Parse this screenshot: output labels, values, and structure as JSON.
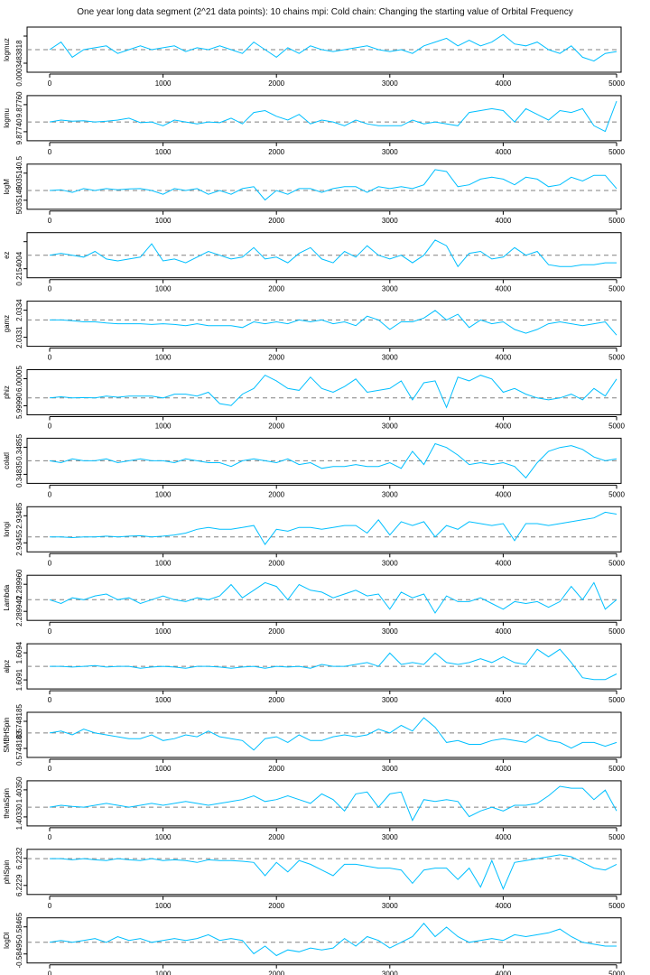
{
  "chart_data": {
    "type": "line",
    "title": "One year long data segment (2^21 data points): 10 chains mpi: Cold chain: Changing the starting value of Orbital Frequency",
    "x_ticks": [
      "0",
      "1000",
      "2000",
      "3000",
      "4000",
      "5000"
    ],
    "x_tick_values": [
      0,
      1000,
      2000,
      3000,
      4000,
      5000
    ],
    "xlim": [
      0,
      5000
    ],
    "x_step": 100,
    "series_color": "#00bfff",
    "reference_line_color": "#808080",
    "note": "y values are relative to each panel's range (0 = bottom, 1 = top); dashed line marks the reference value",
    "panels": [
      {
        "name": "logmuz",
        "yticks": [
          "0.0003483818",
          ""
        ],
        "ref": 0.5,
        "values": [
          0.5,
          0.7,
          0.3,
          0.5,
          0.55,
          0.6,
          0.4,
          0.5,
          0.6,
          0.5,
          0.55,
          0.6,
          0.45,
          0.55,
          0.5,
          0.6,
          0.5,
          0.4,
          0.7,
          0.5,
          0.3,
          0.55,
          0.4,
          0.6,
          0.5,
          0.45,
          0.5,
          0.55,
          0.6,
          0.5,
          0.45,
          0.5,
          0.4,
          0.6,
          0.7,
          0.8,
          0.6,
          0.75,
          0.6,
          0.7,
          0.9,
          0.65,
          0.6,
          0.7,
          0.5,
          0.4,
          0.6,
          0.3,
          0.2,
          0.4,
          0.45
        ]
      },
      {
        "name": "logmu",
        "yticks": [
          "9.87740",
          "9.87760"
        ],
        "ref": 0.4,
        "values": [
          0.4,
          0.45,
          0.42,
          0.43,
          0.4,
          0.42,
          0.45,
          0.5,
          0.38,
          0.4,
          0.3,
          0.45,
          0.4,
          0.35,
          0.4,
          0.38,
          0.5,
          0.35,
          0.65,
          0.7,
          0.55,
          0.45,
          0.6,
          0.35,
          0.45,
          0.4,
          0.3,
          0.45,
          0.35,
          0.3,
          0.3,
          0.3,
          0.45,
          0.35,
          0.4,
          0.35,
          0.3,
          0.65,
          0.7,
          0.75,
          0.7,
          0.4,
          0.75,
          0.6,
          0.45,
          0.7,
          0.65,
          0.75,
          0.3,
          0.15,
          0.95
        ]
      },
      {
        "name": "logM",
        "yticks": [
          "5035140",
          "5035140.5"
        ],
        "ref": 0.4,
        "values": [
          0.4,
          0.42,
          0.35,
          0.45,
          0.4,
          0.45,
          0.42,
          0.44,
          0.45,
          0.4,
          0.3,
          0.45,
          0.4,
          0.45,
          0.3,
          0.4,
          0.3,
          0.45,
          0.5,
          0.15,
          0.4,
          0.3,
          0.45,
          0.45,
          0.35,
          0.45,
          0.5,
          0.5,
          0.35,
          0.5,
          0.45,
          0.5,
          0.45,
          0.55,
          0.95,
          0.9,
          0.5,
          0.55,
          0.7,
          0.75,
          0.7,
          0.55,
          0.75,
          0.7,
          0.5,
          0.55,
          0.75,
          0.65,
          0.8,
          0.8,
          0.45
        ]
      },
      {
        "name": "ez",
        "yticks": [
          "0.2154004",
          ""
        ],
        "ref": 0.5,
        "values": [
          0.5,
          0.55,
          0.5,
          0.45,
          0.6,
          0.4,
          0.35,
          0.4,
          0.45,
          0.8,
          0.35,
          0.4,
          0.3,
          0.45,
          0.6,
          0.5,
          0.4,
          0.45,
          0.7,
          0.4,
          0.45,
          0.3,
          0.55,
          0.7,
          0.4,
          0.3,
          0.6,
          0.45,
          0.75,
          0.5,
          0.4,
          0.5,
          0.3,
          0.5,
          0.9,
          0.75,
          0.2,
          0.55,
          0.6,
          0.4,
          0.45,
          0.7,
          0.5,
          0.6,
          0.25,
          0.2,
          0.2,
          0.25,
          0.25,
          0.3,
          0.3
        ]
      },
      {
        "name": "gamz",
        "yticks": [
          "2.0331",
          "2.0334"
        ],
        "ref": 0.6,
        "values": [
          0.6,
          0.6,
          0.58,
          0.55,
          0.55,
          0.52,
          0.5,
          0.5,
          0.5,
          0.48,
          0.5,
          0.48,
          0.45,
          0.5,
          0.45,
          0.45,
          0.45,
          0.4,
          0.55,
          0.5,
          0.55,
          0.5,
          0.6,
          0.55,
          0.6,
          0.5,
          0.55,
          0.45,
          0.7,
          0.6,
          0.35,
          0.55,
          0.55,
          0.65,
          0.85,
          0.6,
          0.75,
          0.4,
          0.6,
          0.5,
          0.55,
          0.35,
          0.25,
          0.35,
          0.5,
          0.55,
          0.5,
          0.45,
          0.5,
          0.55,
          0.2
        ]
      },
      {
        "name": "phiz",
        "yticks": [
          "5.99990",
          "6.00005"
        ],
        "ref": 0.35,
        "values": [
          0.35,
          0.38,
          0.35,
          0.36,
          0.35,
          0.4,
          0.37,
          0.4,
          0.4,
          0.4,
          0.35,
          0.45,
          0.45,
          0.4,
          0.5,
          0.2,
          0.15,
          0.45,
          0.6,
          0.95,
          0.8,
          0.6,
          0.55,
          0.9,
          0.6,
          0.5,
          0.65,
          0.85,
          0.5,
          0.55,
          0.6,
          0.8,
          0.3,
          0.75,
          0.8,
          0.1,
          0.9,
          0.8,
          0.95,
          0.85,
          0.5,
          0.6,
          0.45,
          0.35,
          0.3,
          0.35,
          0.45,
          0.3,
          0.6,
          0.4,
          0.85
        ]
      },
      {
        "name": "colatl",
        "yticks": [
          "0.34835",
          "0.34855"
        ],
        "ref": 0.5,
        "values": [
          0.5,
          0.45,
          0.55,
          0.5,
          0.5,
          0.55,
          0.45,
          0.5,
          0.55,
          0.5,
          0.5,
          0.45,
          0.55,
          0.5,
          0.45,
          0.45,
          0.35,
          0.5,
          0.55,
          0.5,
          0.45,
          0.55,
          0.4,
          0.45,
          0.3,
          0.35,
          0.35,
          0.4,
          0.35,
          0.35,
          0.45,
          0.3,
          0.75,
          0.4,
          0.95,
          0.85,
          0.65,
          0.4,
          0.45,
          0.4,
          0.45,
          0.35,
          0.05,
          0.45,
          0.75,
          0.85,
          0.9,
          0.8,
          0.6,
          0.5,
          0.55
        ]
      },
      {
        "name": "longi",
        "yticks": [
          "2.93455",
          "2.93485"
        ],
        "ref": 0.3,
        "values": [
          0.3,
          0.3,
          0.28,
          0.3,
          0.3,
          0.32,
          0.3,
          0.32,
          0.33,
          0.3,
          0.32,
          0.35,
          0.4,
          0.5,
          0.55,
          0.5,
          0.5,
          0.55,
          0.6,
          0.1,
          0.5,
          0.45,
          0.55,
          0.55,
          0.5,
          0.55,
          0.6,
          0.6,
          0.4,
          0.75,
          0.35,
          0.7,
          0.6,
          0.7,
          0.3,
          0.6,
          0.5,
          0.7,
          0.65,
          0.6,
          0.65,
          0.2,
          0.65,
          0.65,
          0.6,
          0.65,
          0.7,
          0.75,
          0.8,
          0.95,
          0.9
        ]
      },
      {
        "name": "Lambda",
        "yticks": [
          "2.289940",
          "2.289960"
        ],
        "ref": 0.45,
        "values": [
          0.45,
          0.35,
          0.5,
          0.45,
          0.55,
          0.6,
          0.45,
          0.5,
          0.35,
          0.45,
          0.55,
          0.45,
          0.4,
          0.5,
          0.45,
          0.55,
          0.85,
          0.5,
          0.7,
          0.9,
          0.8,
          0.45,
          0.85,
          0.7,
          0.65,
          0.5,
          0.6,
          0.7,
          0.55,
          0.6,
          0.2,
          0.65,
          0.5,
          0.6,
          0.1,
          0.55,
          0.4,
          0.4,
          0.5,
          0.35,
          0.2,
          0.4,
          0.35,
          0.4,
          0.25,
          0.4,
          0.8,
          0.45,
          0.9,
          0.2,
          0.45
        ]
      },
      {
        "name": "alpz",
        "yticks": [
          "1.6091",
          "1.6094"
        ],
        "ref": 0.5,
        "values": [
          0.5,
          0.5,
          0.48,
          0.5,
          0.52,
          0.48,
          0.5,
          0.5,
          0.45,
          0.48,
          0.5,
          0.48,
          0.45,
          0.5,
          0.5,
          0.48,
          0.45,
          0.48,
          0.5,
          0.45,
          0.5,
          0.48,
          0.5,
          0.45,
          0.55,
          0.5,
          0.5,
          0.55,
          0.6,
          0.5,
          0.85,
          0.55,
          0.6,
          0.55,
          0.85,
          0.6,
          0.55,
          0.6,
          0.7,
          0.6,
          0.75,
          0.6,
          0.55,
          0.95,
          0.75,
          0.95,
          0.6,
          0.2,
          0.15,
          0.15,
          0.3
        ]
      },
      {
        "name": "SMBHSpin",
        "yticks": [
          "0.5748183",
          "0.5748185"
        ],
        "ref": 0.55,
        "values": [
          0.55,
          0.6,
          0.5,
          0.65,
          0.55,
          0.5,
          0.45,
          0.4,
          0.4,
          0.5,
          0.35,
          0.4,
          0.5,
          0.45,
          0.6,
          0.45,
          0.4,
          0.35,
          0.1,
          0.4,
          0.45,
          0.3,
          0.5,
          0.35,
          0.35,
          0.45,
          0.5,
          0.45,
          0.5,
          0.65,
          0.55,
          0.75,
          0.6,
          0.95,
          0.7,
          0.3,
          0.35,
          0.25,
          0.25,
          0.35,
          0.4,
          0.35,
          0.3,
          0.5,
          0.35,
          0.3,
          0.15,
          0.3,
          0.3,
          0.2,
          0.3
        ]
      },
      {
        "name": "thetaSpin",
        "yticks": [
          "1.40330",
          "1.40350"
        ],
        "ref": 0.4,
        "values": [
          0.4,
          0.45,
          0.42,
          0.4,
          0.45,
          0.5,
          0.45,
          0.4,
          0.45,
          0.5,
          0.45,
          0.5,
          0.55,
          0.5,
          0.45,
          0.5,
          0.55,
          0.6,
          0.7,
          0.55,
          0.6,
          0.7,
          0.6,
          0.5,
          0.75,
          0.6,
          0.3,
          0.75,
          0.8,
          0.4,
          0.75,
          0.8,
          0.05,
          0.6,
          0.55,
          0.6,
          0.55,
          0.15,
          0.3,
          0.4,
          0.3,
          0.45,
          0.45,
          0.5,
          0.7,
          0.95,
          0.9,
          0.9,
          0.6,
          0.85,
          0.3
        ]
      },
      {
        "name": "phiSpin",
        "yticks": [
          "6.2229",
          "6.2232"
        ],
        "ref": 0.85,
        "values": [
          0.85,
          0.85,
          0.82,
          0.85,
          0.82,
          0.8,
          0.85,
          0.82,
          0.8,
          0.85,
          0.8,
          0.82,
          0.8,
          0.75,
          0.82,
          0.8,
          0.8,
          0.78,
          0.75,
          0.4,
          0.75,
          0.5,
          0.8,
          0.7,
          0.55,
          0.4,
          0.7,
          0.7,
          0.65,
          0.6,
          0.6,
          0.55,
          0.2,
          0.55,
          0.6,
          0.6,
          0.3,
          0.6,
          0.1,
          0.8,
          0.05,
          0.75,
          0.8,
          0.85,
          0.9,
          0.95,
          0.9,
          0.75,
          0.6,
          0.55,
          0.7
        ]
      },
      {
        "name": "logDl",
        "yticks": [
          "-0.58495",
          "-0.58465"
        ],
        "ref": 0.45,
        "values": [
          0.45,
          0.5,
          0.45,
          0.5,
          0.55,
          0.45,
          0.6,
          0.5,
          0.55,
          0.45,
          0.5,
          0.55,
          0.5,
          0.55,
          0.65,
          0.5,
          0.55,
          0.5,
          0.15,
          0.35,
          0.1,
          0.25,
          0.2,
          0.3,
          0.25,
          0.3,
          0.55,
          0.35,
          0.6,
          0.5,
          0.3,
          0.45,
          0.6,
          0.95,
          0.6,
          0.85,
          0.6,
          0.45,
          0.5,
          0.55,
          0.5,
          0.65,
          0.6,
          0.65,
          0.7,
          0.8,
          0.6,
          0.45,
          0.4,
          0.35,
          0.35
        ]
      }
    ]
  }
}
